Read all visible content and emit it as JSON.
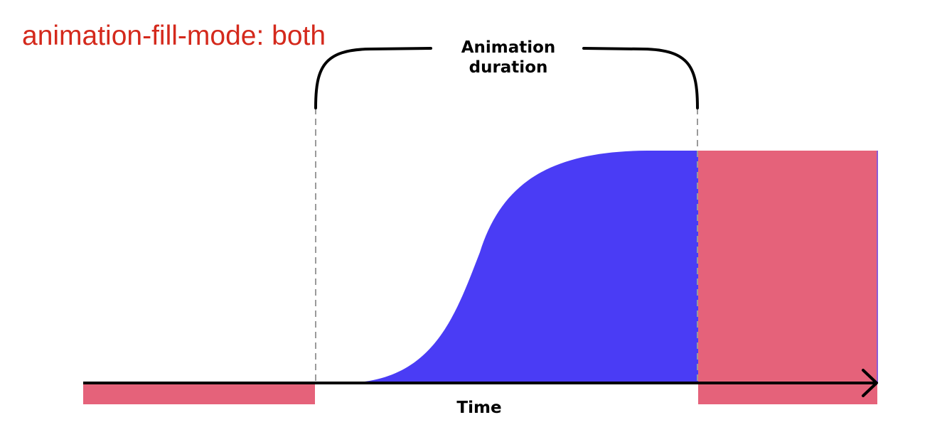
{
  "title": "animation-fill-mode: both",
  "duration_label": {
    "line1": "Animation",
    "line2": "duration"
  },
  "axis_label": "Time",
  "colors": {
    "title": "#d4291c",
    "fill_mode": "#e5627a",
    "animation": "#4a3cf5",
    "stroke": "#000000",
    "guide": "#9a9a9a"
  }
}
